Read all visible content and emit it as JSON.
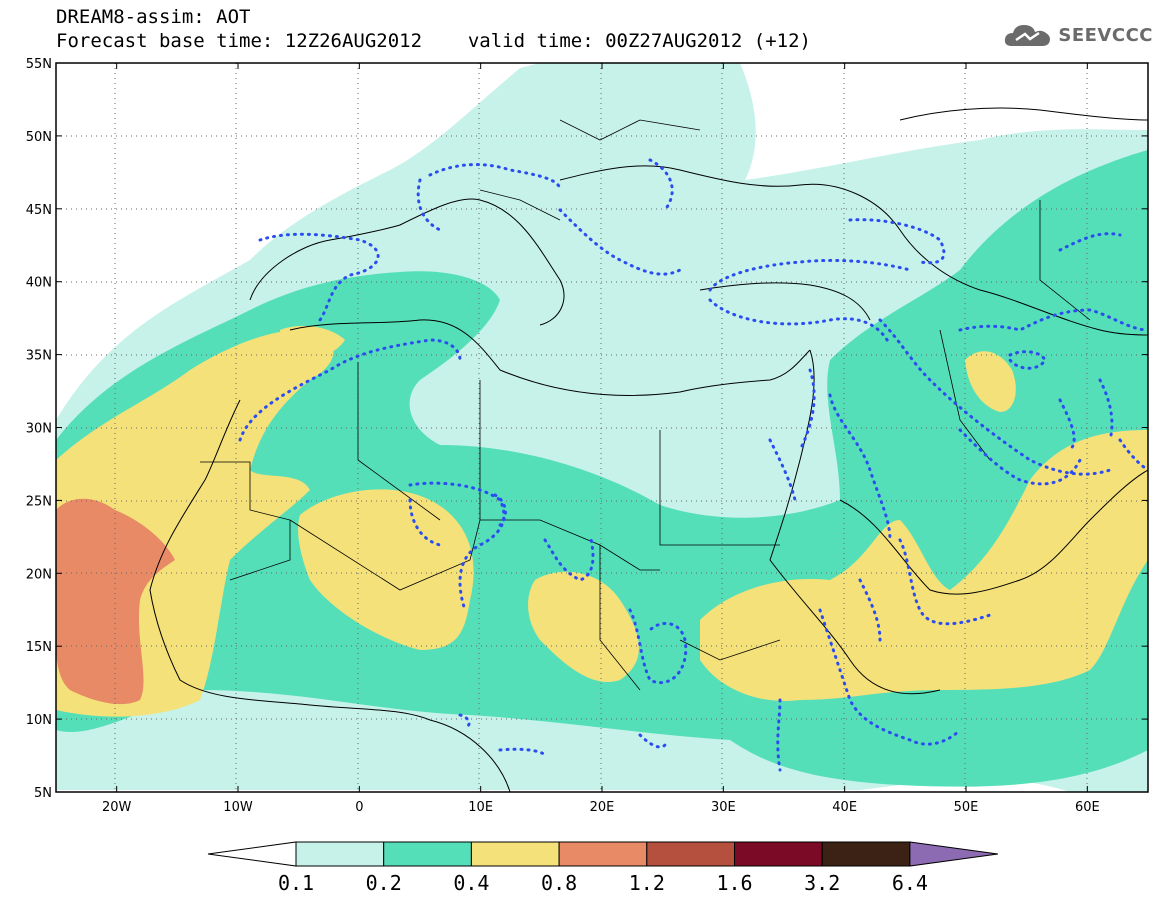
{
  "header": {
    "title_line1": "DREAM8-assim: AOT",
    "forecast_label": "Forecast base time: 12Z26AUG2012",
    "valid_label": "valid time: 00Z27AUG2012 (+12)"
  },
  "logo": {
    "text": "SEEVCCC",
    "icon": "cloud-icon",
    "color": "#6b6b6b"
  },
  "map": {
    "projection": "equirectangular",
    "lon_range": [
      -25,
      65
    ],
    "lat_range": [
      5,
      55
    ],
    "lat_ticks": [
      "55N",
      "50N",
      "45N",
      "40N",
      "35N",
      "30N",
      "25N",
      "20N",
      "15N",
      "10N",
      "5N"
    ],
    "lon_ticks": [
      "20W",
      "10W",
      "0",
      "10E",
      "20E",
      "30E",
      "40E",
      "50E",
      "60E"
    ],
    "gridlines": true,
    "gridline_style": "dotted"
  },
  "colorbar": {
    "labels": [
      "0.1",
      "0.2",
      "0.4",
      "0.8",
      "1.2",
      "1.6",
      "3.2",
      "6.4"
    ],
    "colors": [
      "#c6f2ea",
      "#55dfb8",
      "#f4e17a",
      "#e88a65",
      "#b5503e",
      "#7a0a25",
      "#3c2214",
      "#8d6bb3"
    ]
  },
  "fill_colors": {
    "under": "#ffffff",
    "b01_02": "#c6f2ea",
    "b02_04": "#55dfb8",
    "b04_08": "#f4e17a",
    "b08_12": "#e88a65"
  },
  "contour_color": "#2b4cf0"
}
